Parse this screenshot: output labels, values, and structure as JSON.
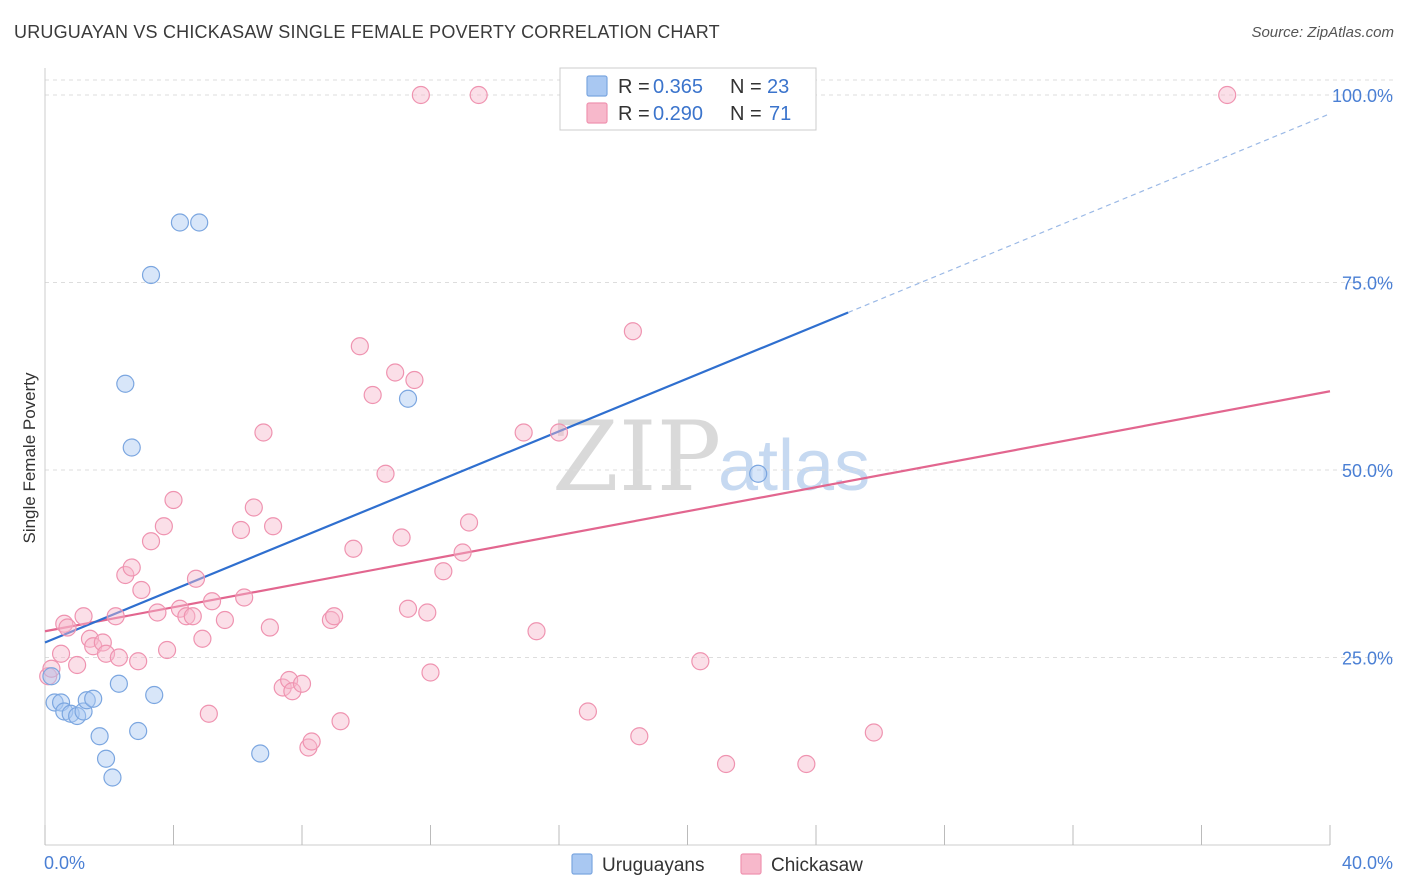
{
  "title": "URUGUAYAN VS CHICKASAW SINGLE FEMALE POVERTY CORRELATION CHART",
  "source": "Source: ZipAtlas.com",
  "watermark": {
    "zip": "ZIP",
    "atlas": "atlas"
  },
  "colors": {
    "uruguayans_fill": "#a9c8f2",
    "uruguayans_stroke": "#7ba6e0",
    "uruguayans_line": "#2f6fcf",
    "chickasaw_fill": "#f7b8cb",
    "chickasaw_stroke": "#ef93b0",
    "chickasaw_line": "#e2668f",
    "grid": "#dddddd",
    "tick_text": "#4a7fd4"
  },
  "chart_data": {
    "type": "scatter",
    "title": "URUGUAYAN VS CHICKASAW SINGLE FEMALE POVERTY CORRELATION CHART",
    "xlabel": "",
    "ylabel": "Single Female Poverty",
    "xlim": [
      0,
      40
    ],
    "ylim": [
      0,
      102
    ],
    "x_tick_labels": {
      "min": "0.0%",
      "max": "40.0%"
    },
    "x_tick_values": [
      0,
      4,
      8,
      12,
      16,
      20,
      24,
      28,
      32,
      36,
      40
    ],
    "y_ticks": [
      {
        "value": 25,
        "label": "25.0%"
      },
      {
        "value": 50,
        "label": "50.0%"
      },
      {
        "value": 75,
        "label": "75.0%"
      },
      {
        "value": 100,
        "label": "100.0%"
      }
    ],
    "legend": [
      {
        "series": "Uruguayans",
        "r_label": "R =",
        "r_value": "0.365",
        "n_label": "N =",
        "n_value": "23"
      },
      {
        "series": "Chickasaw",
        "r_label": "R =",
        "r_value": "0.290",
        "n_label": "N =",
        "n_value": "71"
      }
    ],
    "series": [
      {
        "name": "Uruguayans",
        "points": [
          [
            0.2,
            22.5
          ],
          [
            0.3,
            19.0
          ],
          [
            0.5,
            19.0
          ],
          [
            0.6,
            17.8
          ],
          [
            0.8,
            17.5
          ],
          [
            1.0,
            17.2
          ],
          [
            1.2,
            17.8
          ],
          [
            1.3,
            19.3
          ],
          [
            1.5,
            19.5
          ],
          [
            1.7,
            14.5
          ],
          [
            1.9,
            11.5
          ],
          [
            2.1,
            9.0
          ],
          [
            2.3,
            21.5
          ],
          [
            2.5,
            61.5
          ],
          [
            2.7,
            53.0
          ],
          [
            2.9,
            15.2
          ],
          [
            3.3,
            76.0
          ],
          [
            3.4,
            20.0
          ],
          [
            4.2,
            83.0
          ],
          [
            4.8,
            83.0
          ],
          [
            6.7,
            12.2
          ],
          [
            11.3,
            59.5
          ],
          [
            22.2,
            49.5
          ]
        ],
        "trend": {
          "x0": 0,
          "y0": 27.0,
          "x1": 25.0,
          "y1": 71.0,
          "dashed_to_x": 40,
          "dashed_to_y": 97.5
        }
      },
      {
        "name": "Chickasaw",
        "points": [
          [
            0.1,
            22.5
          ],
          [
            0.5,
            25.5
          ],
          [
            0.6,
            29.5
          ],
          [
            0.7,
            29.0
          ],
          [
            1.0,
            24.0
          ],
          [
            1.2,
            30.5
          ],
          [
            1.4,
            27.5
          ],
          [
            1.5,
            26.5
          ],
          [
            1.8,
            27.0
          ],
          [
            1.9,
            25.5
          ],
          [
            2.2,
            30.5
          ],
          [
            2.3,
            25.0
          ],
          [
            2.5,
            36.0
          ],
          [
            2.7,
            37.0
          ],
          [
            2.9,
            24.5
          ],
          [
            3.0,
            34.0
          ],
          [
            3.3,
            40.5
          ],
          [
            3.5,
            31.0
          ],
          [
            3.7,
            42.5
          ],
          [
            3.8,
            26.0
          ],
          [
            4.0,
            46.0
          ],
          [
            4.2,
            31.5
          ],
          [
            4.4,
            30.5
          ],
          [
            4.6,
            30.5
          ],
          [
            4.7,
            35.5
          ],
          [
            4.9,
            27.5
          ],
          [
            5.1,
            17.5
          ],
          [
            5.2,
            32.5
          ],
          [
            5.6,
            30.0
          ],
          [
            6.1,
            42.0
          ],
          [
            6.2,
            33.0
          ],
          [
            6.5,
            45.0
          ],
          [
            6.8,
            55.0
          ],
          [
            7.0,
            29.0
          ],
          [
            7.1,
            42.5
          ],
          [
            7.4,
            21.0
          ],
          [
            7.6,
            22.0
          ],
          [
            7.7,
            20.5
          ],
          [
            8.0,
            21.5
          ],
          [
            8.2,
            13.0
          ],
          [
            8.3,
            13.8
          ],
          [
            8.9,
            30.0
          ],
          [
            9.0,
            30.5
          ],
          [
            9.2,
            16.5
          ],
          [
            9.6,
            39.5
          ],
          [
            9.8,
            66.5
          ],
          [
            10.2,
            60.0
          ],
          [
            10.6,
            49.5
          ],
          [
            10.9,
            63.0
          ],
          [
            11.1,
            41.0
          ],
          [
            11.3,
            31.5
          ],
          [
            11.5,
            62.0
          ],
          [
            11.7,
            100.0
          ],
          [
            11.9,
            31.0
          ],
          [
            12.0,
            23.0
          ],
          [
            12.4,
            36.5
          ],
          [
            13.0,
            39.0
          ],
          [
            13.2,
            43.0
          ],
          [
            13.5,
            100.0
          ],
          [
            14.9,
            55.0
          ],
          [
            15.3,
            28.5
          ],
          [
            16.0,
            55.0
          ],
          [
            16.9,
            17.8
          ],
          [
            18.3,
            68.5
          ],
          [
            18.5,
            14.5
          ],
          [
            20.4,
            24.5
          ],
          [
            21.2,
            10.8
          ],
          [
            23.7,
            10.8
          ],
          [
            25.8,
            15.0
          ],
          [
            36.8,
            100.0
          ],
          [
            0.2,
            23.5
          ]
        ],
        "trend": {
          "x0": 0,
          "y0": 28.5,
          "x1": 40,
          "y1": 60.5
        }
      }
    ]
  }
}
